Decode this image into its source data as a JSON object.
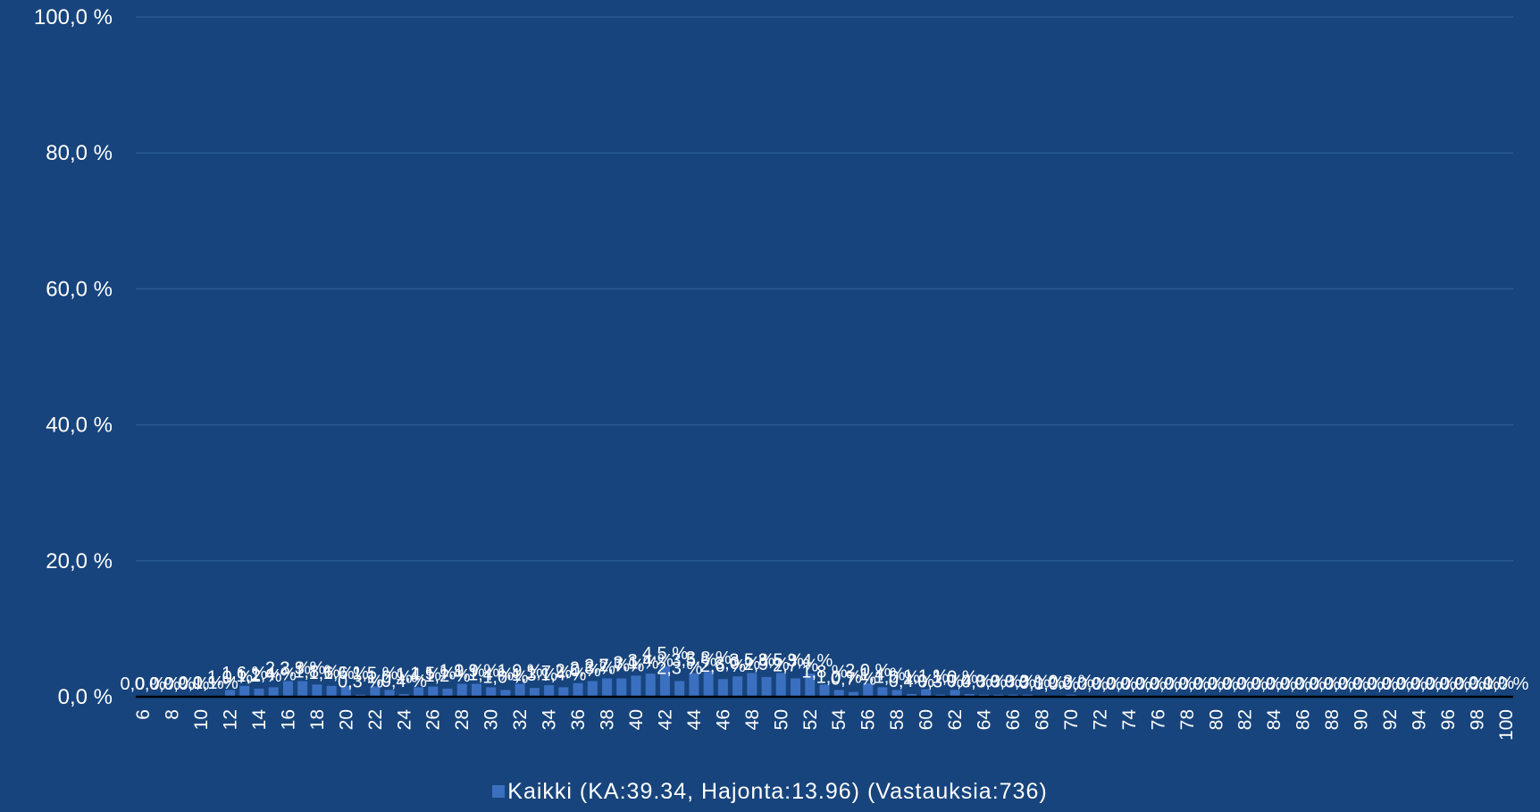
{
  "chart_data": {
    "type": "bar",
    "categories": [
      "6",
      "7",
      "8",
      "9",
      "10",
      "11",
      "12",
      "13",
      "14",
      "15",
      "16",
      "17",
      "18",
      "19",
      "20",
      "21",
      "22",
      "23",
      "24",
      "25",
      "26",
      "27",
      "28",
      "29",
      "30",
      "31",
      "32",
      "33",
      "34",
      "35",
      "36",
      "37",
      "38",
      "39",
      "40",
      "41",
      "42",
      "43",
      "44",
      "45",
      "46",
      "47",
      "48",
      "49",
      "50",
      "51",
      "52",
      "53",
      "54",
      "55",
      "56",
      "57",
      "58",
      "59",
      "60",
      "61",
      "62",
      "63",
      "64",
      "65",
      "66",
      "67",
      "68",
      "69",
      "70",
      "71",
      "72",
      "73",
      "74",
      "75",
      "76",
      "77",
      "78",
      "79",
      "80",
      "81",
      "82",
      "83",
      "84",
      "85",
      "86",
      "87",
      "88",
      "89",
      "90",
      "91",
      "92",
      "93",
      "94",
      "95",
      "96",
      "97",
      "98",
      "99",
      "100"
    ],
    "x_tick_labels": [
      "6",
      "8",
      "10",
      "12",
      "14",
      "16",
      "18",
      "20",
      "22",
      "24",
      "26",
      "28",
      "30",
      "32",
      "34",
      "36",
      "38",
      "40",
      "42",
      "44",
      "46",
      "48",
      "50",
      "52",
      "54",
      "56",
      "58",
      "60",
      "62",
      "64",
      "66",
      "68",
      "70",
      "72",
      "74",
      "76",
      "78",
      "80",
      "82",
      "84",
      "86",
      "88",
      "90",
      "92",
      "94",
      "96",
      "98",
      "100"
    ],
    "series": [
      {
        "name": "Kaikki (KA:39.34, Hajonta:13.96) (Vastauksia:736)",
        "values": [
          0.0,
          0.0,
          0.0,
          0.0,
          0.1,
          0.1,
          1.0,
          1.6,
          1.2,
          1.4,
          2.3,
          2.3,
          1.8,
          1.6,
          1.6,
          0.3,
          1.5,
          1.0,
          0.4,
          1.4,
          1.5,
          1.2,
          1.9,
          1.9,
          1.4,
          1.0,
          1.9,
          1.3,
          1.7,
          1.4,
          2.0,
          2.3,
          2.7,
          2.7,
          3.1,
          3.4,
          4.5,
          2.3,
          3.5,
          3.8,
          2.6,
          3.0,
          3.5,
          2.9,
          3.5,
          2.7,
          3.4,
          1.8,
          1.0,
          0.7,
          2.0,
          1.4,
          1.0,
          0.4,
          1.1,
          0.3,
          1.0,
          0.4,
          0.3,
          0.3,
          0.3,
          0.3,
          0.1,
          0.0,
          0.3,
          0.0,
          0.0,
          0.0,
          0.0,
          0.0,
          0.0,
          0.0,
          0.0,
          0.0,
          0.0,
          0.0,
          0.0,
          0.0,
          0.0,
          0.0,
          0.0,
          0.0,
          0.0,
          0.0,
          0.0,
          0.0,
          0.0,
          0.0,
          0.0,
          0.0,
          0.0,
          0.0,
          0.0,
          0.1,
          0.0
        ],
        "labels": [
          "0,0 %",
          "0,0 %",
          "0,0 %",
          "0,0 %",
          "0,1 %",
          "0,1 %",
          "1,0 %",
          "1,6 %",
          "1,2 %",
          "1,4 %",
          "2,3 %",
          "2,3 %",
          "1,8 %",
          "1,6 %",
          "1,6 %",
          "0,3 %",
          "1,5 %",
          "1,0 %",
          "0,4 %",
          "1,4 %",
          "1,5 %",
          "1,2 %",
          "1,9 %",
          "1,9 %",
          "1,4 %",
          "1,0 %",
          "1,9 %",
          "1,3 %",
          "1,7 %",
          "1,4 %",
          "2,0 %",
          "2,3 %",
          "2,7 %",
          "2,7 %",
          "3,1 %",
          "3,4 %",
          "4,5 %",
          "2,3 %",
          "3,5 %",
          "3,8 %",
          "2,6 %",
          "3,0 %",
          "3,5 %",
          "2,9 %",
          "3,5 %",
          "2,7 %",
          "3,4 %",
          "1,8 %",
          "1,0 %",
          "0,7 %",
          "2,0 %",
          "1,4 %",
          "1,0 %",
          "0,4 %",
          "1,1 %",
          "0,3 %",
          "1,0 %",
          "0,4 %",
          "0,3 %",
          "0,3 %",
          "0,3 %",
          "0,3 %",
          "0,1 %",
          "0,0 %",
          "0,3 %",
          "0,0 %",
          "0,0 %",
          "0,0 %",
          "0,0 %",
          "0,0 %",
          "0,0 %",
          "0,0 %",
          "0,0 %",
          "0,0 %",
          "0,0 %",
          "0,0 %",
          "0,0 %",
          "0,0 %",
          "0,0 %",
          "0,0 %",
          "0,0 %",
          "0,0 %",
          "0,0 %",
          "0,0 %",
          "0,0 %",
          "0,0 %",
          "0,0 %",
          "0,0 %",
          "0,0 %",
          "0,0 %",
          "0,0 %",
          "0,0 %",
          "0,0 %",
          "0,1 %",
          "0,0 %"
        ]
      }
    ],
    "y_tick_labels": [
      "0,0 %",
      "20,0 %",
      "40,0 %",
      "60,0 %",
      "80,0 %",
      "100,0 %"
    ],
    "y_tick_values": [
      0,
      20,
      40,
      60,
      80,
      100
    ],
    "ylim": [
      0,
      100
    ],
    "grid": true,
    "legend_position": "bottom",
    "colors": {
      "background": "#17447c",
      "bar": "#3b6fc0",
      "bar_top": "#4d82d1",
      "grid": "#2a5a94",
      "axis": "#000000",
      "text": "#ffffff"
    }
  },
  "legend": {
    "label": "Kaikki (KA:39.34, Hajonta:13.96) (Vastauksia:736)"
  }
}
